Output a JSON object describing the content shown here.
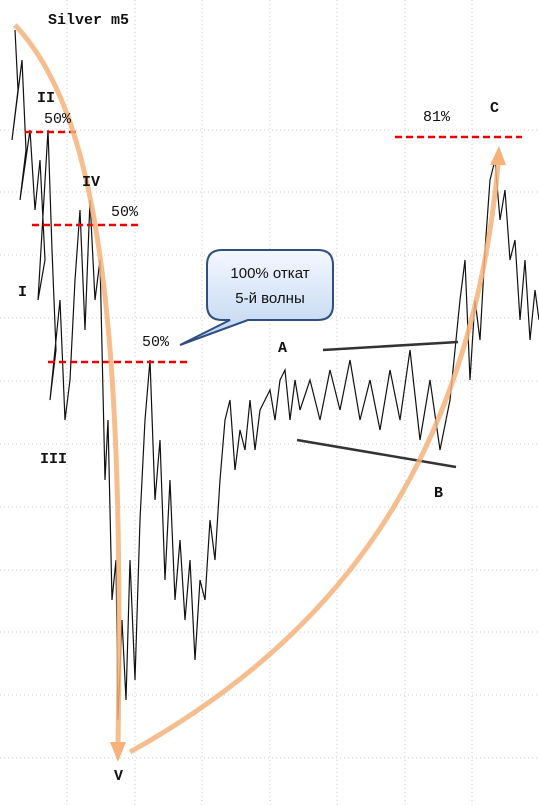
{
  "chart_data": {
    "type": "annotated-price",
    "title": "Silver m5",
    "wave_labels": [
      "I",
      "II",
      "III",
      "IV",
      "V",
      "A",
      "B",
      "C"
    ],
    "retracements": [
      "50%",
      "50%",
      "50%",
      "81%"
    ],
    "callout": [
      "100% откат",
      "5-й волны"
    ]
  }
}
